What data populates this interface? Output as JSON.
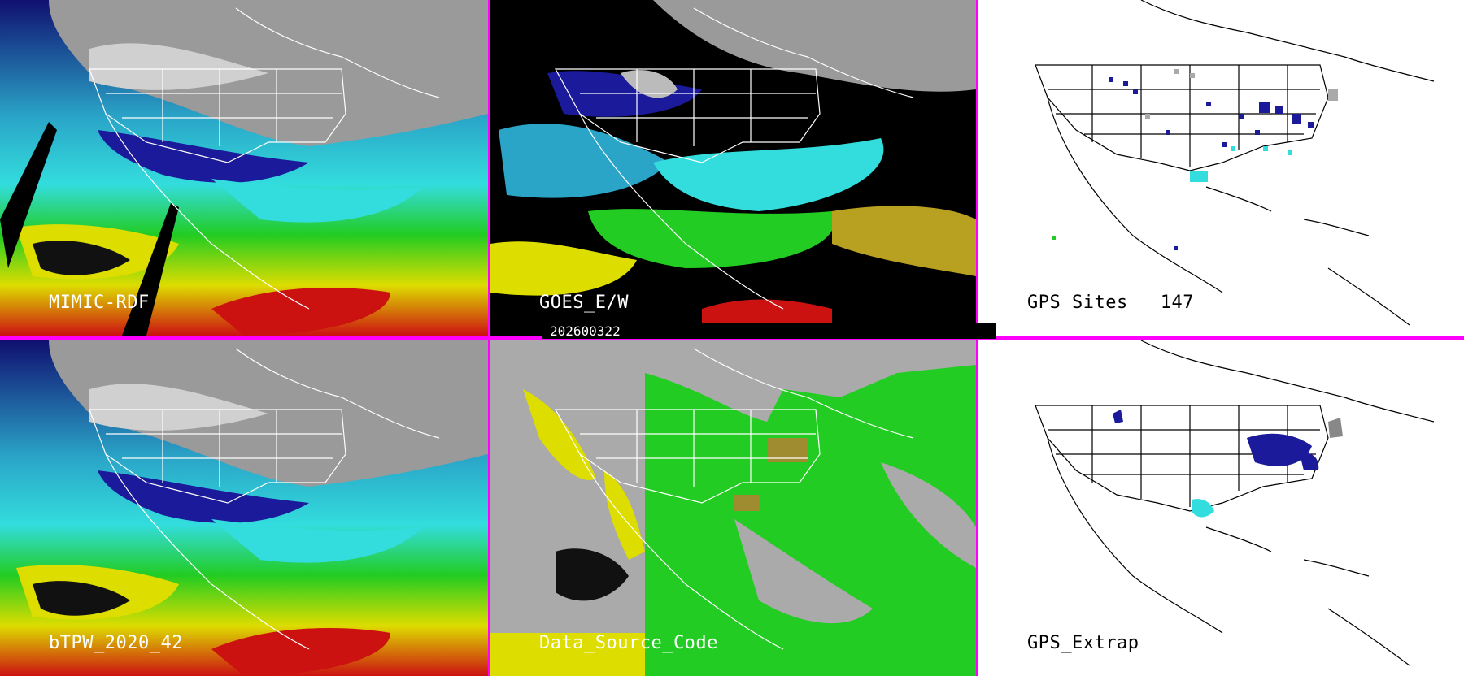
{
  "date": "202600322",
  "panels": [
    {
      "id": "mimic",
      "label": "MIMIC-RDF"
    },
    {
      "id": "goes",
      "label": "GOES_E/W"
    },
    {
      "id": "gps_sites",
      "label": "GPS Sites",
      "count": "147"
    },
    {
      "id": "btpw",
      "label": "bTPW_2020_42"
    },
    {
      "id": "data_source",
      "label": "Data_Source_Code"
    },
    {
      "id": "gps_extrap",
      "label": "GPS_Extrap"
    }
  ],
  "colors": {
    "divider": "#ff00ff",
    "ocean_teal": "#33dddd",
    "navy": "#111188",
    "green": "#22cc00",
    "yellow": "#dddd00",
    "red": "#cc1111",
    "gray": "#aaaaaa"
  }
}
